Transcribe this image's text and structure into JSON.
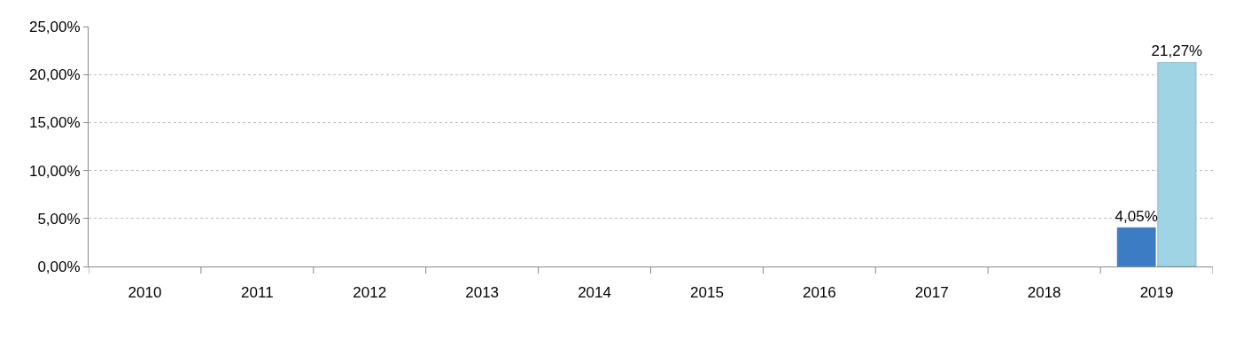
{
  "chart_data": {
    "type": "bar",
    "categories": [
      "2010",
      "2011",
      "2012",
      "2013",
      "2014",
      "2015",
      "2016",
      "2017",
      "2018",
      "2019"
    ],
    "series": [
      {
        "color": "#3c7cc4",
        "values": [
          null,
          null,
          null,
          null,
          null,
          null,
          null,
          null,
          null,
          4.05
        ],
        "value_labels": [
          null,
          null,
          null,
          null,
          null,
          null,
          null,
          null,
          null,
          "4,05%"
        ]
      },
      {
        "color": "#9fd4e4",
        "values": [
          null,
          null,
          null,
          null,
          null,
          null,
          null,
          null,
          null,
          21.27
        ],
        "value_labels": [
          null,
          null,
          null,
          null,
          null,
          null,
          null,
          null,
          null,
          "21,27%"
        ]
      }
    ],
    "ylim": [
      0,
      25
    ],
    "yticks": [
      {
        "value": 0,
        "label": "0,00%"
      },
      {
        "value": 5,
        "label": "5,00%"
      },
      {
        "value": 10,
        "label": "10,00%"
      },
      {
        "value": 15,
        "label": "15,00%"
      },
      {
        "value": 20,
        "label": "20,00%"
      },
      {
        "value": 25,
        "label": "25,00%"
      }
    ],
    "grid": "y"
  }
}
